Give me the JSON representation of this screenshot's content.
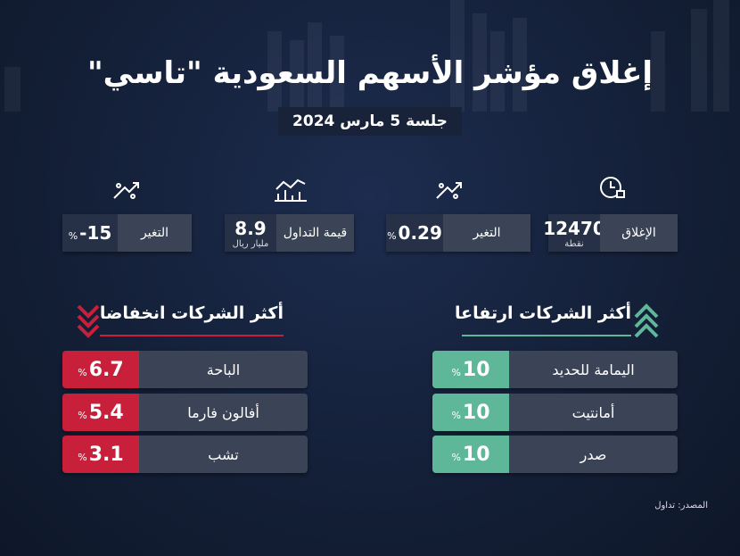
{
  "header": {
    "title": "إغلاق مؤشر الأسهم السعودية \"تاسي\"",
    "subtitle": "جلسة 5 مارس 2024"
  },
  "stats": [
    {
      "label": "الإغلاق",
      "value": "12470",
      "unit": "نقطة"
    },
    {
      "label": "التغير",
      "value": "0.29",
      "unit": "%"
    },
    {
      "label": "قيمة التداول",
      "value": "8.9",
      "unit": "مليار ريال"
    },
    {
      "label": "التغير",
      "value": "-15",
      "unit": "%"
    }
  ],
  "gainers": {
    "title": "أكثر الشركات ارتفاعا",
    "rows": [
      {
        "name": "اليمامة للحديد",
        "value": "10",
        "unit": "%"
      },
      {
        "name": "أمانتيت",
        "value": "10",
        "unit": "%"
      },
      {
        "name": "صدر",
        "value": "10",
        "unit": "%"
      }
    ]
  },
  "losers": {
    "title": "أكثر الشركات انخفاضا",
    "rows": [
      {
        "name": "الباحة",
        "value": "6.7",
        "unit": "%"
      },
      {
        "name": "أفالون فارما",
        "value": "5.4",
        "unit": "%"
      },
      {
        "name": "تشب",
        "value": "3.1",
        "unit": "%"
      }
    ]
  },
  "footer": {
    "source": "المصدر: تداول"
  }
}
